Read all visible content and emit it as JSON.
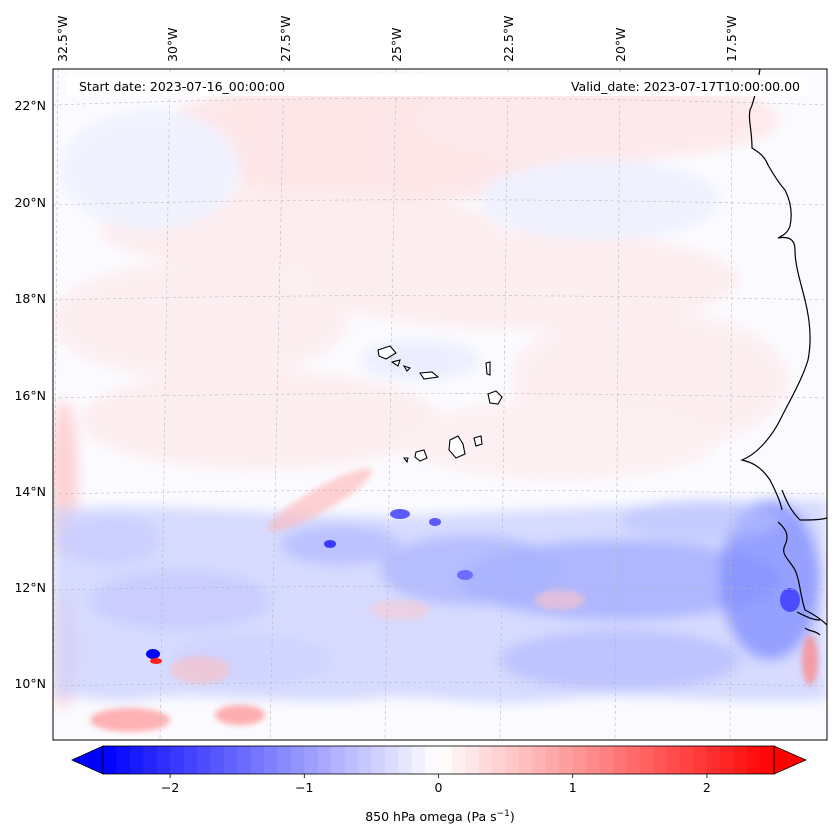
{
  "map": {
    "header": {
      "start_date": "Start date: 2023-07-16_00:00:00",
      "valid_date": "Valid_date: 2023-07-17T10:00:00.00"
    },
    "longitude_labels": [
      "32.5°W",
      "30°W",
      "27.5°W",
      "25°W",
      "22.5°W",
      "20°W",
      "17.5°W"
    ],
    "latitude_labels": [
      "22°N",
      "20°N",
      "18°N",
      "16°N",
      "14°N",
      "12°N",
      "10°N"
    ],
    "colorbar": {
      "label": "850 hPa omega (Pa s",
      "label_sup": "−1",
      "label_end": ")",
      "ticks": [
        "−2",
        "−1",
        "0",
        "1",
        "2"
      ],
      "tick_values": [
        -2,
        -1,
        0,
        1,
        2
      ],
      "range": [
        -2.5,
        2.5
      ],
      "colormap": "bwr",
      "extend": "both",
      "colors": {
        "negative": "#0000ff",
        "neutral": "#ffffff",
        "positive": "#ff0000"
      }
    },
    "field": {
      "variable": "850 hPa omega",
      "colors": {
        "descent": "#ff0000",
        "ascent": "#0000ff",
        "coast": "#000000",
        "grid": "#b0b0b0"
      }
    }
  }
}
